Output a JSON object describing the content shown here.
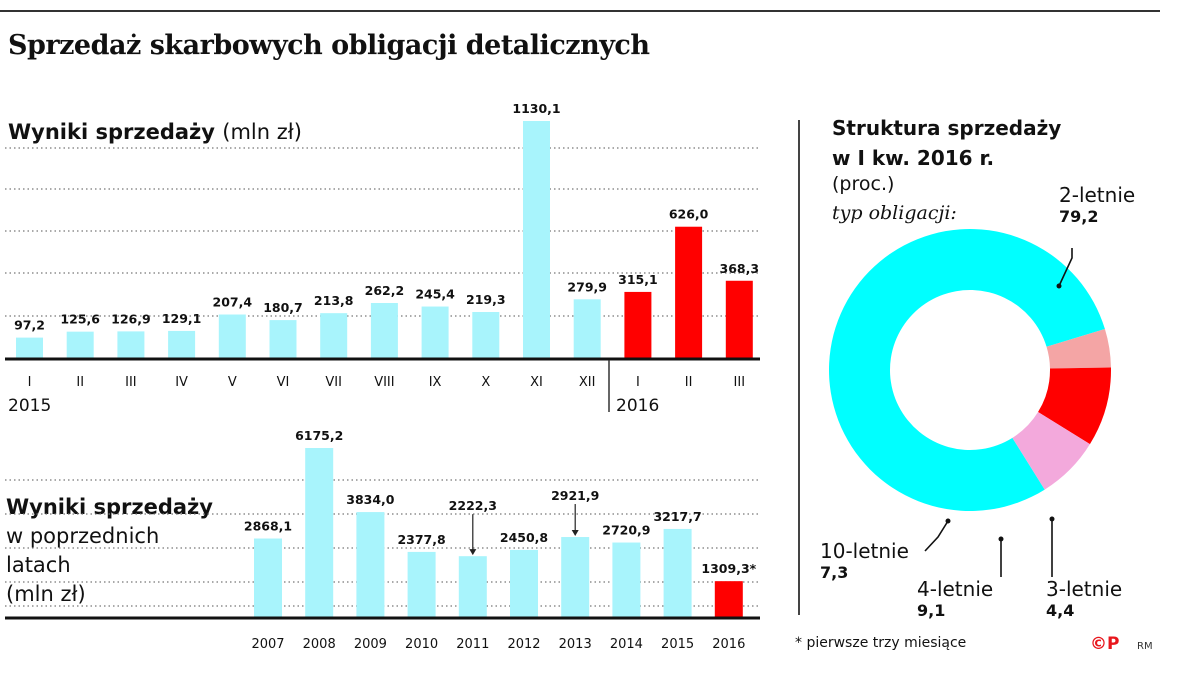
{
  "title": "Sprzedaż skarbowych obligacji detalicznych",
  "upper": {
    "title": "Wyniki sprzedaży",
    "unit": "(mln zł)"
  },
  "lower": {
    "title": "Wyniki sprzedaży",
    "subtitle_line1": "w poprzednich",
    "subtitle_line2": "latach",
    "unit": "(mln zł)"
  },
  "pie": {
    "title_line1": "Struktura sprzedaży",
    "title_line2": "w I kw. 2016 r.",
    "unit": "(proc.)",
    "type_label": "typ obligacji:"
  },
  "footnote": "* pierwsze trzy miesiące",
  "logo": "©P",
  "initials": "RM",
  "colors": {
    "base": "#a8f4fc",
    "highlight": "#ff0000",
    "pie_2": "#00ffff",
    "pie_10": "#f3a9dc",
    "pie_4": "#ff0000",
    "pie_3": "#f4a5a5"
  },
  "chart_data": [
    {
      "type": "bar",
      "title": "Wyniki sprzedaży",
      "ylabel": "(mln zł)",
      "categories": [
        "I",
        "II",
        "III",
        "IV",
        "V",
        "VI",
        "VII",
        "VIII",
        "IX",
        "X",
        "XI",
        "XII",
        "I",
        "II",
        "III"
      ],
      "value_labels": [
        "97,2",
        "125,6",
        "126,9",
        "129,1",
        "207,4",
        "180,7",
        "213,8",
        "262,2",
        "245,4",
        "219,3",
        "1130,1",
        "279,9",
        "315,1",
        "626,0",
        "368,3"
      ],
      "values": [
        97.2,
        125.6,
        126.9,
        129.1,
        207.4,
        180.7,
        213.8,
        262.2,
        245.4,
        219.3,
        1130.1,
        279.9,
        315.1,
        626.0,
        368.3
      ],
      "highlight": [
        false,
        false,
        false,
        false,
        false,
        false,
        false,
        false,
        false,
        false,
        false,
        false,
        true,
        true,
        true
      ],
      "year_labels": [
        "2015",
        "2016"
      ],
      "ylim": [
        0,
        1130.1
      ],
      "grid": true
    },
    {
      "type": "bar",
      "title": "Wyniki sprzedaży w poprzednich latach",
      "ylabel": "(mln zł)",
      "categories": [
        "2007",
        "2008",
        "2009",
        "2010",
        "2011",
        "2012",
        "2013",
        "2014",
        "2015",
        "2016"
      ],
      "value_labels": [
        "2868,1",
        "6175,2",
        "3834,0",
        "2377,8",
        "2222,3",
        "2450,8",
        "2921,9",
        "2720,9",
        "3217,7",
        "1309,3*"
      ],
      "values": [
        2868.1,
        6175.2,
        3834.0,
        2377.8,
        2222.3,
        2450.8,
        2921.9,
        2720.9,
        3217.7,
        1309.3
      ],
      "highlight": [
        false,
        false,
        false,
        false,
        false,
        false,
        false,
        false,
        false,
        true
      ],
      "ylim": [
        0,
        6175.2
      ],
      "grid": true
    },
    {
      "type": "pie",
      "title": "Struktura sprzedaży w I kw. 2016 r.",
      "unit": "(proc.)",
      "slices": [
        {
          "label": "2-letnie",
          "value": 79.2,
          "value_label": "79,2",
          "color": "#00ffff"
        },
        {
          "label": "3-letnie",
          "value": 4.4,
          "value_label": "4,4",
          "color": "#f4a5a5"
        },
        {
          "label": "4-letnie",
          "value": 9.1,
          "value_label": "9,1",
          "color": "#ff0000"
        },
        {
          "label": "10-letnie",
          "value": 7.3,
          "value_label": "7,3",
          "color": "#f3a9dc"
        }
      ]
    }
  ]
}
